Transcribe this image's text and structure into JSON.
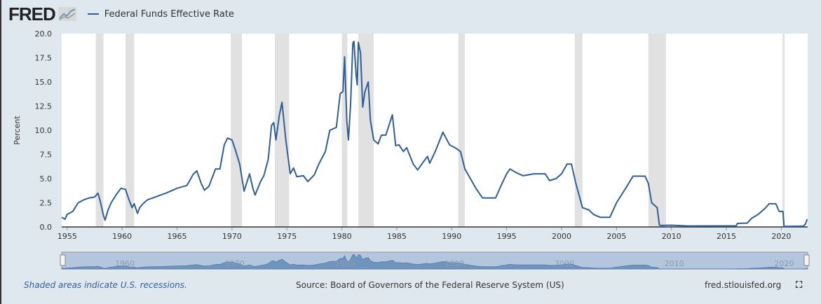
{
  "header": {
    "logo": "FRED",
    "legend": "Federal Funds Effective Rate"
  },
  "footer": {
    "note": "Shaded areas indicate U.S. recessions.",
    "source": "Source: Board of Governors of the Federal Reserve System (US)",
    "url": "fred.stlouisfed.org"
  },
  "colors": {
    "line": "#2f5f98",
    "recession": "#e1e1e1",
    "navigator": "#6f95bd"
  },
  "chart_data": {
    "type": "line",
    "title": "Federal Funds Effective Rate",
    "ylabel": "Percent",
    "xlim": [
      1954.5,
      2022.4
    ],
    "ylim": [
      0,
      20
    ],
    "yticks": [
      "0.0",
      "2.5",
      "5.0",
      "7.5",
      "10.0",
      "12.5",
      "15.0",
      "17.5",
      "20.0"
    ],
    "xticks": [
      "1955",
      "1960",
      "1965",
      "1970",
      "1975",
      "1980",
      "1985",
      "1990",
      "1995",
      "2000",
      "2005",
      "2010",
      "2015",
      "2020"
    ],
    "navigator_ticks": [
      "1960",
      "1970",
      "1980",
      "1990",
      "2000",
      "2010",
      "2020"
    ],
    "recessions": [
      [
        1957.6,
        1958.3
      ],
      [
        1960.3,
        1961.1
      ],
      [
        1969.9,
        1970.9
      ],
      [
        1973.9,
        1975.2
      ],
      [
        1980.0,
        1980.5
      ],
      [
        1981.5,
        1982.9
      ],
      [
        1990.6,
        1991.2
      ],
      [
        2001.2,
        2001.9
      ],
      [
        2007.9,
        2009.5
      ],
      [
        2020.1,
        2020.3
      ]
    ],
    "series": [
      {
        "name": "Federal Funds Effective Rate",
        "points": [
          [
            1954.5,
            1.0
          ],
          [
            1954.8,
            0.8
          ],
          [
            1955.0,
            1.3
          ],
          [
            1955.5,
            1.6
          ],
          [
            1956.0,
            2.5
          ],
          [
            1956.5,
            2.8
          ],
          [
            1957.0,
            3.0
          ],
          [
            1957.5,
            3.1
          ],
          [
            1957.8,
            3.5
          ],
          [
            1958.0,
            2.7
          ],
          [
            1958.3,
            1.2
          ],
          [
            1958.45,
            0.7
          ],
          [
            1958.7,
            1.7
          ],
          [
            1959.0,
            2.5
          ],
          [
            1959.5,
            3.4
          ],
          [
            1959.9,
            4.0
          ],
          [
            1960.3,
            3.9
          ],
          [
            1960.6,
            2.9
          ],
          [
            1960.9,
            2.0
          ],
          [
            1961.1,
            2.4
          ],
          [
            1961.4,
            1.4
          ],
          [
            1961.6,
            2.0
          ],
          [
            1961.9,
            2.4
          ],
          [
            1962.3,
            2.8
          ],
          [
            1962.8,
            3.0
          ],
          [
            1963.5,
            3.3
          ],
          [
            1964.0,
            3.5
          ],
          [
            1965.0,
            4.0
          ],
          [
            1965.9,
            4.3
          ],
          [
            1966.5,
            5.5
          ],
          [
            1966.8,
            5.8
          ],
          [
            1967.2,
            4.5
          ],
          [
            1967.5,
            3.8
          ],
          [
            1967.9,
            4.2
          ],
          [
            1968.5,
            6.0
          ],
          [
            1968.9,
            6.0
          ],
          [
            1969.3,
            8.5
          ],
          [
            1969.6,
            9.2
          ],
          [
            1970.0,
            9.0
          ],
          [
            1970.3,
            8.0
          ],
          [
            1970.7,
            6.5
          ],
          [
            1971.1,
            3.7
          ],
          [
            1971.6,
            5.5
          ],
          [
            1971.9,
            4.0
          ],
          [
            1972.1,
            3.3
          ],
          [
            1972.6,
            4.7
          ],
          [
            1972.9,
            5.3
          ],
          [
            1973.3,
            7.0
          ],
          [
            1973.6,
            10.5
          ],
          [
            1973.8,
            10.8
          ],
          [
            1974.0,
            9.0
          ],
          [
            1974.3,
            11.5
          ],
          [
            1974.55,
            12.9
          ],
          [
            1974.9,
            9.0
          ],
          [
            1975.3,
            5.5
          ],
          [
            1975.6,
            6.1
          ],
          [
            1975.9,
            5.2
          ],
          [
            1976.5,
            5.3
          ],
          [
            1976.9,
            4.7
          ],
          [
            1977.5,
            5.4
          ],
          [
            1977.9,
            6.5
          ],
          [
            1978.5,
            7.8
          ],
          [
            1978.9,
            10.0
          ],
          [
            1979.5,
            10.3
          ],
          [
            1979.85,
            13.8
          ],
          [
            1980.1,
            14.0
          ],
          [
            1980.25,
            17.6
          ],
          [
            1980.45,
            11.0
          ],
          [
            1980.6,
            9.0
          ],
          [
            1980.8,
            12.8
          ],
          [
            1981.0,
            19.0
          ],
          [
            1981.1,
            19.2
          ],
          [
            1981.3,
            15.7
          ],
          [
            1981.4,
            14.7
          ],
          [
            1981.5,
            19.1
          ],
          [
            1981.7,
            18.0
          ],
          [
            1981.9,
            12.4
          ],
          [
            1982.1,
            14.0
          ],
          [
            1982.4,
            15.0
          ],
          [
            1982.6,
            11.0
          ],
          [
            1982.9,
            9.0
          ],
          [
            1983.3,
            8.6
          ],
          [
            1983.6,
            9.5
          ],
          [
            1984.0,
            9.5
          ],
          [
            1984.6,
            11.6
          ],
          [
            1984.9,
            8.4
          ],
          [
            1985.2,
            8.5
          ],
          [
            1985.6,
            7.8
          ],
          [
            1985.9,
            8.2
          ],
          [
            1986.5,
            6.5
          ],
          [
            1986.9,
            5.9
          ],
          [
            1987.4,
            6.7
          ],
          [
            1987.8,
            7.3
          ],
          [
            1988.0,
            6.6
          ],
          [
            1988.5,
            7.8
          ],
          [
            1989.2,
            9.8
          ],
          [
            1989.8,
            8.5
          ],
          [
            1990.3,
            8.2
          ],
          [
            1990.8,
            7.8
          ],
          [
            1991.2,
            6.0
          ],
          [
            1991.8,
            4.8
          ],
          [
            1992.2,
            4.0
          ],
          [
            1992.8,
            3.0
          ],
          [
            1993.5,
            3.0
          ],
          [
            1994.0,
            3.0
          ],
          [
            1994.5,
            4.3
          ],
          [
            1995.0,
            5.5
          ],
          [
            1995.3,
            6.0
          ],
          [
            1995.9,
            5.6
          ],
          [
            1996.5,
            5.3
          ],
          [
            1997.5,
            5.5
          ],
          [
            1998.5,
            5.5
          ],
          [
            1998.9,
            4.8
          ],
          [
            1999.5,
            5.0
          ],
          [
            2000.0,
            5.5
          ],
          [
            2000.5,
            6.5
          ],
          [
            2000.9,
            6.5
          ],
          [
            2001.3,
            4.5
          ],
          [
            2001.9,
            2.0
          ],
          [
            2002.5,
            1.75
          ],
          [
            2002.9,
            1.3
          ],
          [
            2003.5,
            1.0
          ],
          [
            2004.4,
            1.0
          ],
          [
            2005.0,
            2.5
          ],
          [
            2006.0,
            4.3
          ],
          [
            2006.5,
            5.25
          ],
          [
            2007.6,
            5.25
          ],
          [
            2007.9,
            4.5
          ],
          [
            2008.2,
            2.5
          ],
          [
            2008.7,
            2.0
          ],
          [
            2008.9,
            0.2
          ],
          [
            2009.0,
            0.15
          ],
          [
            2010.0,
            0.18
          ],
          [
            2011.5,
            0.1
          ],
          [
            2015.9,
            0.12
          ],
          [
            2016.0,
            0.36
          ],
          [
            2016.9,
            0.4
          ],
          [
            2017.3,
            0.9
          ],
          [
            2017.9,
            1.3
          ],
          [
            2018.5,
            1.9
          ],
          [
            2018.9,
            2.4
          ],
          [
            2019.5,
            2.4
          ],
          [
            2019.8,
            1.6
          ],
          [
            2020.15,
            1.6
          ],
          [
            2020.25,
            0.05
          ],
          [
            2022.0,
            0.08
          ],
          [
            2022.2,
            0.3
          ],
          [
            2022.35,
            0.8
          ]
        ]
      }
    ],
    "grid": false,
    "legend": "top-left"
  }
}
